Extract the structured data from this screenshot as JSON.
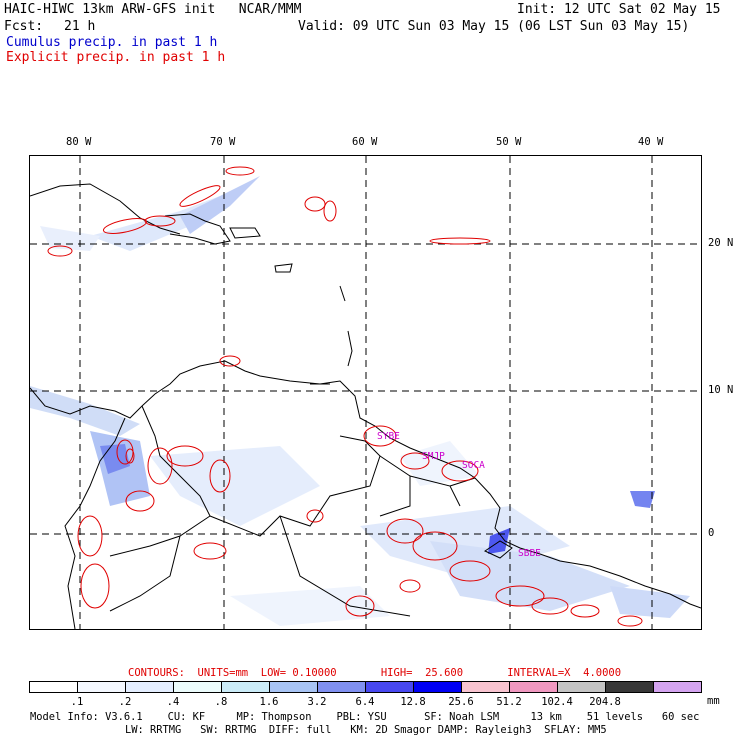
{
  "header": {
    "title": "HAIC-HIWC 13km ARW-GFS init   NCAR/MMM",
    "init": "Init: 12 UTC Sat 02 May 15",
    "fcst_label": "Fcst:",
    "fcst_value": "21 h",
    "valid": "Valid: 09 UTC Sun 03 May 15 (06 LST Sun 03 May 15)",
    "cumulus": "Cumulus precip. in past 1 h",
    "explicit": "Explicit precip. in past 1 h"
  },
  "map": {
    "lon_labels": [
      "80 W",
      "70 W",
      "60 W",
      "50 W",
      "40 W"
    ],
    "lat_labels": [
      "20 N",
      "10 N",
      "0"
    ],
    "stations": [
      "SYBE",
      "SMJP",
      "SOCA",
      "SBBE"
    ]
  },
  "legend": {
    "contours": "CONTOURS:  UNITS=mm  LOW= 0.10000       HIGH=  25.600       INTERVAL=X  4.0000",
    "levels": [
      ".1",
      ".2",
      ".4",
      ".8",
      "1.6",
      "3.2",
      "6.4",
      "12.8",
      "25.6",
      "51.2",
      "102.4",
      "204.8"
    ],
    "unit": "mm",
    "colors": [
      "#ffffff",
      "#f4f8ff",
      "#e4eeff",
      "#ecfcfc",
      "#cbecf8",
      "#a8c4f4",
      "#8090f0",
      "#4848f0",
      "#0000f4",
      "#f8c4d0",
      "#f098c0",
      "#c4c4c4",
      "#383838",
      "#d4a4f0"
    ]
  },
  "footer": {
    "line1": "Model Info: V3.6.1    CU: KF     MP: Thompson    PBL: YSU      SF: Noah LSM     13 km    51 levels   60 sec",
    "line2": "LW: RRTMG   SW: RRTMG  DIFF: full   KM: 2D Smagor DAMP: Rayleigh3  SFLAY: MM5"
  }
}
